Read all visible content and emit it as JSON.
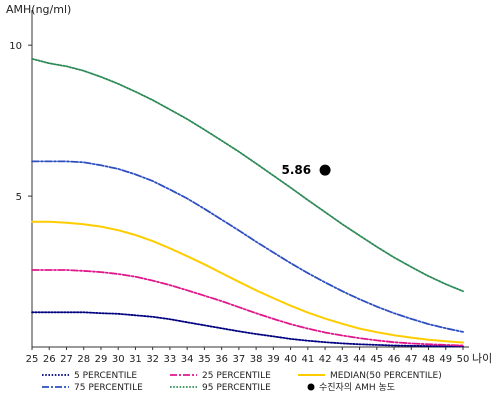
{
  "chart_data": {
    "type": "line",
    "ylabel": "AMH(ng/ml)",
    "xlabel": "나이",
    "x": [
      25,
      26,
      27,
      28,
      29,
      30,
      31,
      32,
      33,
      34,
      35,
      36,
      37,
      38,
      39,
      40,
      41,
      42,
      43,
      44,
      45,
      46,
      47,
      48,
      49,
      50
    ],
    "y_ticks": [
      5,
      10
    ],
    "xlim": [
      25,
      50
    ],
    "ylim": [
      0,
      11
    ],
    "grid": false,
    "legend_position": "bottom",
    "series": [
      {
        "name": "5 PERCENTILE",
        "color": "#000080",
        "style": "dotted",
        "values": [
          1.15,
          1.15,
          1.15,
          1.15,
          1.12,
          1.1,
          1.05,
          1.0,
          0.92,
          0.82,
          0.72,
          0.62,
          0.52,
          0.43,
          0.35,
          0.27,
          0.21,
          0.16,
          0.12,
          0.09,
          0.07,
          0.05,
          0.04,
          0.03,
          0.02,
          0.02
        ]
      },
      {
        "name": "25 PERCENTILE",
        "color": "#e0178b",
        "style": "dashdot",
        "values": [
          2.55,
          2.55,
          2.55,
          2.52,
          2.48,
          2.42,
          2.33,
          2.2,
          2.05,
          1.88,
          1.7,
          1.52,
          1.32,
          1.12,
          0.93,
          0.76,
          0.61,
          0.48,
          0.38,
          0.29,
          0.22,
          0.16,
          0.12,
          0.09,
          0.07,
          0.05
        ]
      },
      {
        "name": "MEDIAN(50 PERCENTILE)",
        "color": "#ffcc00",
        "style": "solid",
        "values": [
          4.15,
          4.15,
          4.12,
          4.07,
          3.99,
          3.87,
          3.71,
          3.51,
          3.27,
          3.01,
          2.74,
          2.45,
          2.16,
          1.88,
          1.62,
          1.37,
          1.14,
          0.94,
          0.77,
          0.61,
          0.49,
          0.39,
          0.31,
          0.24,
          0.19,
          0.15
        ]
      },
      {
        "name": "75 PERCENTILE",
        "color": "#2e4fbf",
        "style": "dashdot",
        "values": [
          6.15,
          6.15,
          6.15,
          6.12,
          6.02,
          5.9,
          5.72,
          5.5,
          5.22,
          4.92,
          4.58,
          4.22,
          3.86,
          3.49,
          3.13,
          2.78,
          2.45,
          2.14,
          1.85,
          1.58,
          1.34,
          1.12,
          0.93,
          0.76,
          0.62,
          0.5
        ]
      },
      {
        "name": "95 PERCENTILE",
        "color": "#2e8b57",
        "style": "dotted",
        "values": [
          9.55,
          9.4,
          9.3,
          9.15,
          8.95,
          8.72,
          8.46,
          8.18,
          7.87,
          7.55,
          7.2,
          6.84,
          6.47,
          6.08,
          5.68,
          5.28,
          4.87,
          4.47,
          4.07,
          3.69,
          3.32,
          2.97,
          2.65,
          2.35,
          2.08,
          1.85
        ]
      }
    ],
    "highlight": {
      "name": "수진자의 AMH 농도",
      "x": 42,
      "y": 5.86,
      "label": "5.86",
      "color": "#000000"
    }
  }
}
